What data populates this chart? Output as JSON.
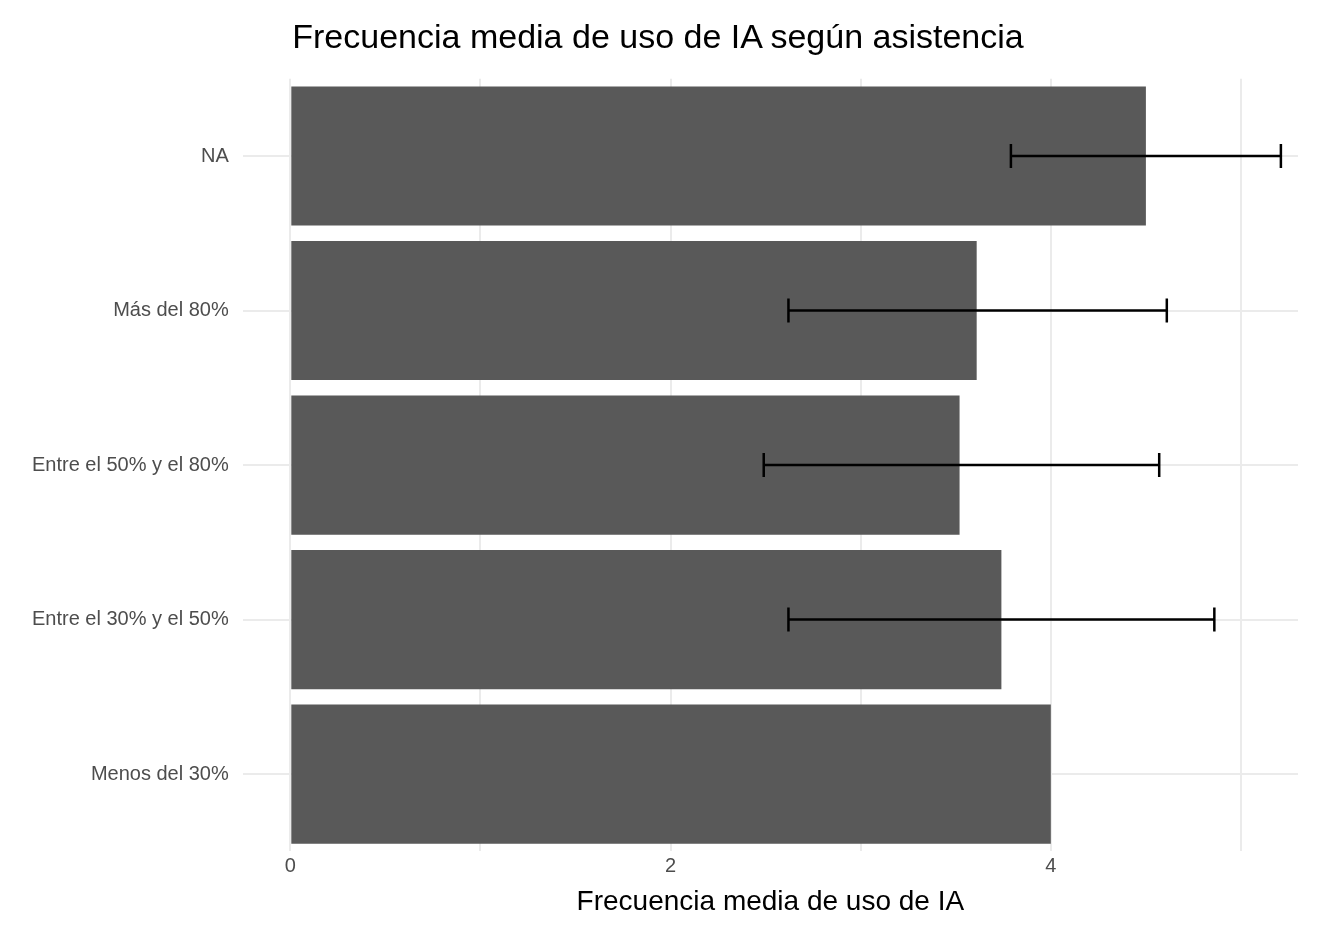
{
  "chart_data": {
    "type": "bar",
    "orientation": "horizontal",
    "title": "Frecuencia media de uso de IA según asistencia",
    "xlabel": "Frecuencia media de uso de IA",
    "categories": [
      "NA",
      "Más del 80%",
      "Entre el 50% y el 80%",
      "Entre el 30% y el 50%",
      "Menos del 30%"
    ],
    "values": [
      4.5,
      3.61,
      3.52,
      3.74,
      4.0
    ],
    "errors": [
      [
        3.79,
        5.21
      ],
      [
        2.62,
        4.61
      ],
      [
        2.49,
        4.57
      ],
      [
        2.62,
        4.86
      ],
      null
    ],
    "color": "#595959",
    "xlim": [
      -0.25,
      5.3
    ],
    "xticks": [
      0,
      {
        "value": 1,
        "label": null
      },
      2,
      {
        "value": 3,
        "label": null
      },
      4,
      {
        "value": 5,
        "label": null
      }
    ],
    "grid": true
  }
}
